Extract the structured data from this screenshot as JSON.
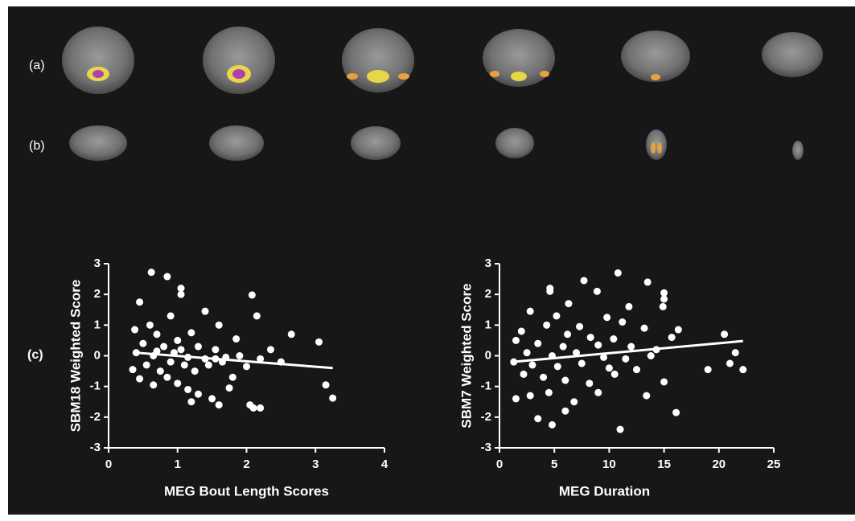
{
  "panel_labels": [
    "(a)",
    "(b)",
    "(c)"
  ],
  "chart_data": [
    {
      "type": "scatter",
      "xlabel": "MEG Bout Length Scores",
      "ylabel": "SBM18 Weighted Score",
      "color": "#ffffff",
      "xlim": [
        0,
        4
      ],
      "xticks": [
        0,
        1,
        2,
        3,
        4
      ],
      "ylim": [
        -3,
        3
      ],
      "yticks": [
        -3,
        -2,
        -1,
        0,
        1,
        2,
        3
      ],
      "x": [
        0.62,
        0.85,
        1.05,
        1.05,
        0.45,
        1.4,
        2.08,
        2.15,
        0.9,
        0.6,
        1.6,
        2.65,
        3.05,
        0.38,
        0.7,
        1.2,
        1.85,
        0.5,
        0.8,
        1.0,
        1.3,
        1.55,
        2.35,
        0.4,
        0.65,
        0.95,
        1.15,
        1.4,
        1.7,
        1.9,
        2.2,
        2.5,
        0.35,
        0.55,
        0.75,
        0.9,
        1.1,
        1.25,
        1.45,
        1.65,
        1.8,
        2.0,
        0.45,
        0.65,
        0.85,
        1.0,
        1.15,
        1.3,
        1.5,
        1.2,
        1.6,
        1.75,
        2.05,
        2.1,
        2.2,
        3.15,
        3.25,
        1.55,
        0.7,
        1.05
      ],
      "y": [
        2.72,
        2.58,
        2.2,
        2.0,
        1.75,
        1.45,
        1.98,
        1.3,
        1.3,
        1.0,
        1.0,
        0.7,
        0.45,
        0.85,
        0.7,
        0.75,
        0.55,
        0.4,
        0.3,
        0.5,
        0.3,
        0.2,
        0.2,
        0.1,
        0.0,
        0.1,
        -0.05,
        -0.1,
        -0.05,
        0.0,
        -0.1,
        -0.2,
        -0.45,
        -0.3,
        -0.5,
        -0.2,
        -0.3,
        -0.5,
        -0.3,
        -0.2,
        -0.7,
        -0.35,
        -0.75,
        -0.95,
        -0.7,
        -0.9,
        -1.1,
        -1.25,
        -1.4,
        -1.5,
        -1.6,
        -1.05,
        -1.6,
        -1.7,
        -1.7,
        -0.95,
        -1.38,
        -0.1,
        0.15,
        0.2
      ],
      "trend_line": {
        "x": [
          0.4,
          3.25
        ],
        "y": [
          0.1,
          -0.4
        ]
      }
    },
    {
      "type": "scatter",
      "xlabel": "MEG Duration",
      "ylabel": "SBM7 Weighted Score",
      "color": "#ffffff",
      "xlim": [
        0,
        25
      ],
      "xticks": [
        0,
        5,
        10,
        15,
        20,
        25
      ],
      "ylim": [
        -3,
        3
      ],
      "yticks": [
        -3,
        -2,
        -1,
        0,
        1,
        2,
        3
      ],
      "x": [
        10.8,
        13.5,
        7.7,
        4.6,
        4.6,
        8.9,
        15,
        15,
        6.3,
        11.8,
        14.9,
        2.8,
        5.2,
        9.8,
        11.2,
        4.3,
        7.3,
        13.2,
        16.3,
        2.0,
        6.2,
        8.3,
        10.4,
        15.7,
        1.5,
        3.5,
        5.8,
        9.0,
        12.0,
        14.3,
        20.5,
        2.5,
        4.8,
        7.0,
        9.5,
        11.5,
        13.8,
        21.5,
        1.3,
        3.0,
        5.3,
        7.5,
        10.0,
        12.5,
        19,
        21,
        22.2,
        2.2,
        4.0,
        6.0,
        8.2,
        10.5,
        1.5,
        2.8,
        4.5,
        6.8,
        9.0,
        3.5,
        4.8,
        6.0,
        11,
        13.4,
        16.1,
        15.0
      ],
      "y": [
        2.7,
        2.4,
        2.45,
        2.2,
        2.1,
        2.1,
        2.05,
        1.85,
        1.7,
        1.6,
        1.6,
        1.45,
        1.3,
        1.25,
        1.1,
        1.0,
        0.95,
        0.9,
        0.85,
        0.8,
        0.7,
        0.6,
        0.55,
        0.6,
        0.5,
        0.4,
        0.3,
        0.35,
        0.3,
        0.2,
        0.7,
        0.1,
        0.0,
        0.1,
        -0.05,
        -0.1,
        0.0,
        0.1,
        -0.2,
        -0.3,
        -0.35,
        -0.25,
        -0.4,
        -0.45,
        -0.45,
        -0.25,
        -0.45,
        -0.6,
        -0.7,
        -0.8,
        -0.9,
        -0.6,
        -1.4,
        -1.3,
        -1.2,
        -1.5,
        -1.2,
        -2.05,
        -2.25,
        -1.8,
        -2.4,
        -1.3,
        -1.85,
        -0.85
      ],
      "trend_line": {
        "x": [
          1.2,
          22.2
        ],
        "y": [
          -0.2,
          0.48
        ]
      }
    }
  ]
}
